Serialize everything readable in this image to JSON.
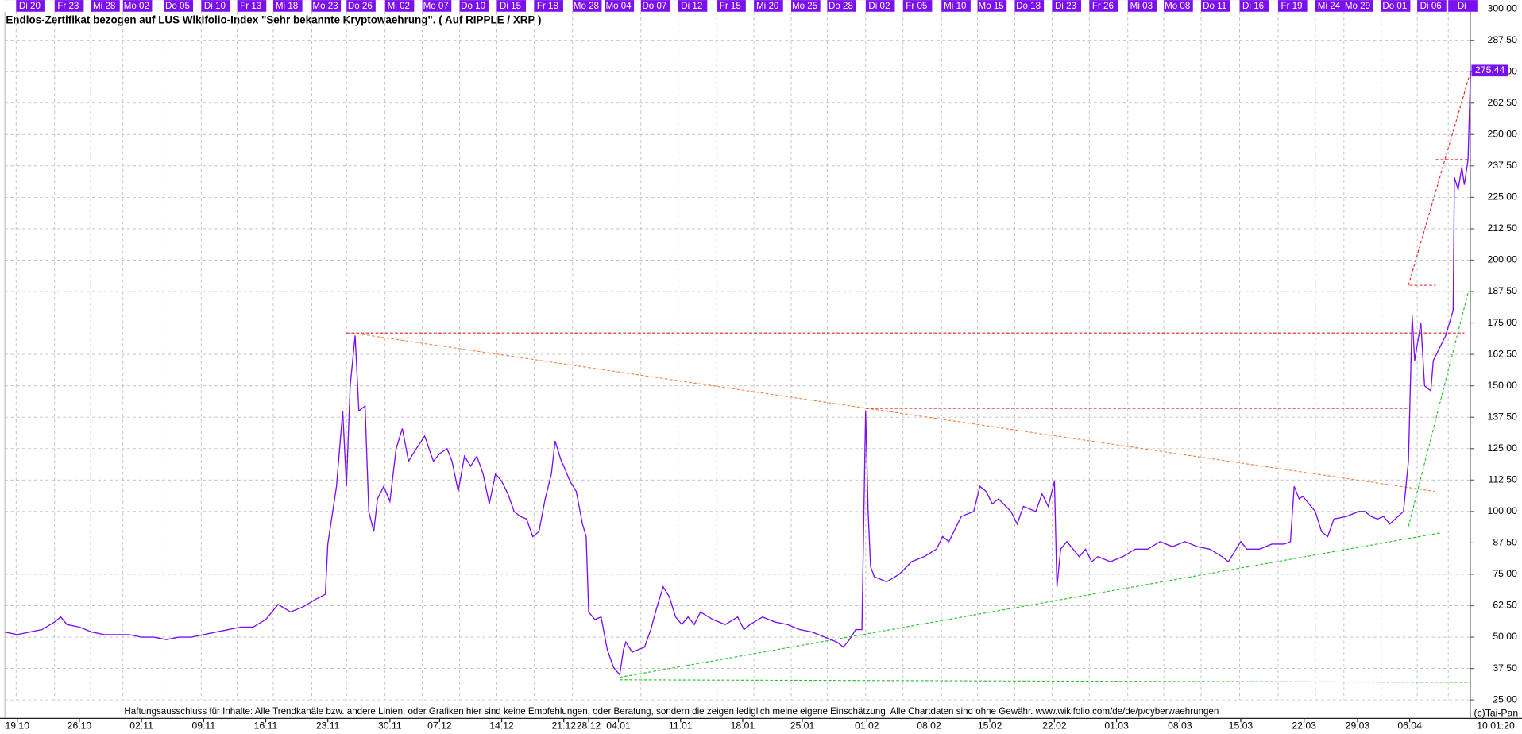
{
  "chart_data": {
    "type": "line",
    "title": "Endlos-Zertifikat bezogen auf LUS Wikifolio-Index \"Sehr bekannte Kryptowaehrung\". ( Auf RIPPLE / XRP )",
    "disclaimer": "Haftungsausschluss für Inhalte: Alle Trendkanäle bzw. andere Linien, oder Grafiken hier sind keine Empfehlungen, oder Beratung, sondern die zeigen lediglich meine eigene Einschätzung. Alle Chartdaten sind ohne Gewähr.  www.wikifolio.com/de/de/p/cyberwaehrungen",
    "copyright": "(c)Tai-Pan",
    "time_label": "10:01:20",
    "last_value": {
      "value": 275.44,
      "label": "275.44"
    },
    "color": "#7a10f0",
    "grid": true,
    "xlim": [
      -1,
      117
    ],
    "ylim": [
      25,
      300
    ],
    "yticks": [
      {
        "value": 25,
        "label": "25.00"
      },
      {
        "value": 37.5,
        "label": "37.50"
      },
      {
        "value": 50,
        "label": "50.00"
      },
      {
        "value": 62.5,
        "label": "62.50"
      },
      {
        "value": 75,
        "label": "75.00"
      },
      {
        "value": 87.5,
        "label": "87.50"
      },
      {
        "value": 100,
        "label": "100.00"
      },
      {
        "value": 112.5,
        "label": "112.50"
      },
      {
        "value": 125,
        "label": "125.00"
      },
      {
        "value": 137.5,
        "label": "137.50"
      },
      {
        "value": 150,
        "label": "150.00"
      },
      {
        "value": 162.5,
        "label": "162.50"
      },
      {
        "value": 175,
        "label": "175.00"
      },
      {
        "value": 187.5,
        "label": "187.50"
      },
      {
        "value": 200,
        "label": "200.00"
      },
      {
        "value": 212.5,
        "label": "212.50"
      },
      {
        "value": 225,
        "label": "225.00"
      },
      {
        "value": 237.5,
        "label": "237.50"
      },
      {
        "value": 250,
        "label": "250.00"
      },
      {
        "value": 262.5,
        "label": "262.50"
      },
      {
        "value": 275,
        "label": "275.00"
      },
      {
        "value": 287.5,
        "label": "287.50"
      },
      {
        "value": 300,
        "label": "300.00"
      }
    ],
    "xticks": [
      {
        "value": 0,
        "label": "19.10"
      },
      {
        "value": 5,
        "label": "26.10"
      },
      {
        "value": 10,
        "label": "02.11"
      },
      {
        "value": 15,
        "label": "09.11"
      },
      {
        "value": 20,
        "label": "16.11"
      },
      {
        "value": 25,
        "label": "23.11"
      },
      {
        "value": 30,
        "label": "30.11"
      },
      {
        "value": 34,
        "label": "07.12"
      },
      {
        "value": 39,
        "label": "14.12"
      },
      {
        "value": 44,
        "label": "21.12"
      },
      {
        "value": 46,
        "label": "28.12"
      },
      {
        "value": 48.4,
        "label": "04.01"
      },
      {
        "value": 53.4,
        "label": "11.01"
      },
      {
        "value": 58.4,
        "label": "18.01"
      },
      {
        "value": 63.2,
        "label": "25.01"
      },
      {
        "value": 68.4,
        "label": "01.02"
      },
      {
        "value": 73.4,
        "label": "08.02"
      },
      {
        "value": 78.3,
        "label": "15.02"
      },
      {
        "value": 83.5,
        "label": "22.02"
      },
      {
        "value": 88.5,
        "label": "01.03"
      },
      {
        "value": 93.6,
        "label": "08.03"
      },
      {
        "value": 98.5,
        "label": "15.03"
      },
      {
        "value": 103.6,
        "label": "22.03"
      },
      {
        "value": 107.9,
        "label": "29.03"
      },
      {
        "value": 112.1,
        "label": "06.04"
      }
    ],
    "x2ticks": [
      {
        "value": 1,
        "label": "Di 20"
      },
      {
        "value": 4.1,
        "label": "Fr 23"
      },
      {
        "value": 7,
        "label": "Mi 28"
      },
      {
        "value": 9.6,
        "label": "Mo 02"
      },
      {
        "value": 12.9,
        "label": "Do 05"
      },
      {
        "value": 15.9,
        "label": "Di 10"
      },
      {
        "value": 18.8,
        "label": "Fr 13"
      },
      {
        "value": 21.7,
        "label": "Mi 18"
      },
      {
        "value": 24.8,
        "label": "Mo 23"
      },
      {
        "value": 27.6,
        "label": "Do 26"
      },
      {
        "value": 30.7,
        "label": "Mi 02"
      },
      {
        "value": 33.7,
        "label": "Mo 07"
      },
      {
        "value": 36.7,
        "label": "Do 10"
      },
      {
        "value": 39.7,
        "label": "Di 15"
      },
      {
        "value": 42.7,
        "label": "Fr 18"
      },
      {
        "value": 45.8,
        "label": "Mo 28"
      },
      {
        "value": 48.4,
        "label": "Mo 04"
      },
      {
        "value": 51.3,
        "label": "Do 07"
      },
      {
        "value": 54.3,
        "label": "Di 12"
      },
      {
        "value": 57.4,
        "label": "Fr 15"
      },
      {
        "value": 60.4,
        "label": "Mi 20"
      },
      {
        "value": 63.4,
        "label": "Mo 25"
      },
      {
        "value": 66.3,
        "label": "Do 28"
      },
      {
        "value": 69.4,
        "label": "Di 02"
      },
      {
        "value": 72.4,
        "label": "Fr 05"
      },
      {
        "value": 75.5,
        "label": "Mi 10"
      },
      {
        "value": 78.4,
        "label": "Mo 15"
      },
      {
        "value": 81.4,
        "label": "Do 18"
      },
      {
        "value": 84.4,
        "label": "Di 23"
      },
      {
        "value": 87.4,
        "label": "Fr 26"
      },
      {
        "value": 90.5,
        "label": "Mi 03"
      },
      {
        "value": 93.4,
        "label": "Mo 08"
      },
      {
        "value": 96.4,
        "label": "Do 11"
      },
      {
        "value": 99.5,
        "label": "Di 16"
      },
      {
        "value": 102.6,
        "label": "Fr 19"
      },
      {
        "value": 105.6,
        "label": "Mi 24"
      },
      {
        "value": 107.9,
        "label": "Mo 29"
      },
      {
        "value": 110.9,
        "label": "Do 01"
      },
      {
        "value": 113.8,
        "label": "Di 06"
      },
      {
        "value": 116.3,
        "label": "Di"
      }
    ],
    "x": [
      -1,
      0,
      1,
      2,
      3,
      3.5,
      4,
      5,
      6,
      7,
      8,
      9,
      10,
      11,
      12,
      13,
      14,
      15,
      16,
      17,
      18,
      19,
      20,
      21,
      22,
      23,
      24,
      24.8,
      25,
      25.7,
      26.2,
      26.5,
      26.8,
      27.2,
      27.5,
      28,
      28.3,
      28.7,
      29,
      29.5,
      30,
      30.5,
      31,
      31.5,
      32,
      32.8,
      33.5,
      34,
      34.6,
      35,
      35.5,
      36,
      36.5,
      37,
      37.5,
      38,
      38.5,
      39,
      39.5,
      40,
      40.5,
      41,
      41.5,
      42,
      42.5,
      43,
      43.3,
      43.8,
      44,
      44.5,
      45,
      45.5,
      45.8,
      46,
      46.5,
      47,
      47.5,
      48,
      48.5,
      48.8,
      49,
      49.5,
      50,
      50.5,
      51,
      51.5,
      52,
      52.5,
      53,
      53.5,
      54,
      54.5,
      55,
      56,
      57,
      58,
      58.5,
      59,
      60,
      61,
      62,
      63,
      64,
      65,
      66,
      66.5,
      67,
      67.5,
      68,
      68.3,
      68.5,
      68.7,
      69,
      70,
      71,
      72,
      73,
      74,
      74.5,
      75,
      75.5,
      76,
      77,
      77.5,
      78,
      78.5,
      79,
      80,
      80.5,
      81,
      82,
      82.5,
      83,
      83.5,
      83.7,
      84,
      84.5,
      85,
      85.5,
      86,
      86.5,
      87,
      88,
      89,
      90,
      91,
      92,
      93,
      94,
      95,
      96,
      97,
      97.5,
      98,
      98.5,
      99,
      100,
      101,
      102,
      102.5,
      102.8,
      103.2,
      103.5,
      104,
      104.5,
      105,
      105.5,
      106,
      107,
      108,
      108.5,
      109,
      109.5,
      110,
      110.5,
      111.6,
      112,
      112.3,
      112.5,
      113,
      113.3,
      113.8,
      114,
      114.5,
      115,
      115.3,
      115.6,
      115.7,
      116,
      116.3,
      116.5,
      116.8,
      117
    ],
    "values": [
      52,
      51,
      52,
      53,
      56,
      58,
      55,
      54,
      52,
      51,
      51,
      51,
      50,
      50,
      49,
      50,
      50,
      51,
      52,
      53,
      54,
      54,
      57,
      63,
      60,
      62,
      65,
      67,
      87,
      110,
      140,
      110,
      150,
      170,
      140,
      142,
      100,
      92,
      105,
      110,
      104,
      125,
      133,
      120,
      124,
      130,
      120,
      123,
      125,
      120,
      108,
      122,
      118,
      122,
      115,
      103,
      115,
      112,
      107,
      100,
      98,
      97,
      90,
      92,
      105,
      115,
      128,
      120,
      118,
      112,
      108,
      95,
      90,
      60,
      57,
      58,
      45,
      38,
      35,
      45,
      48,
      44,
      45,
      46,
      53,
      62,
      70,
      66,
      58,
      55,
      58,
      55,
      60,
      57,
      55,
      58,
      53,
      55,
      58,
      56,
      55,
      53,
      52,
      50,
      48,
      46,
      49,
      53,
      53,
      140,
      100,
      78,
      74,
      72,
      75,
      80,
      82,
      85,
      90,
      88,
      93,
      98,
      100,
      110,
      108,
      103,
      105,
      100,
      95,
      102,
      100,
      107,
      102,
      112,
      70,
      85,
      88,
      85,
      82,
      85,
      80,
      82,
      80,
      82,
      85,
      85,
      88,
      86,
      88,
      86,
      85,
      82,
      80,
      84,
      88,
      85,
      85,
      87,
      87,
      88,
      110,
      105,
      106,
      103,
      100,
      92,
      90,
      97,
      98,
      100,
      100,
      98,
      97,
      98,
      95,
      100,
      120,
      178,
      160,
      175,
      150,
      148,
      160,
      165,
      170,
      175,
      180,
      233,
      228,
      237,
      230,
      240,
      275.44
    ],
    "trendlines": [
      {
        "color": "#f08040",
        "dashed": true,
        "x": [
          27,
          114.1
        ],
        "y": [
          171,
          108
        ]
      },
      {
        "color": "#e02020",
        "dashed": true,
        "x": [
          26.5,
          116.5
        ],
        "y": [
          171,
          171
        ]
      },
      {
        "color": "#e02020",
        "dashed": true,
        "x": [
          68.3,
          112
        ],
        "y": [
          141,
          141
        ]
      },
      {
        "color": "#e02020",
        "dashed": true,
        "x": [
          112.1,
          114.2
        ],
        "y": [
          190,
          190
        ]
      },
      {
        "color": "#e02020",
        "dashed": true,
        "x": [
          114.2,
          117
        ],
        "y": [
          240,
          240
        ]
      },
      {
        "color": "#e02020",
        "dashed": true,
        "x": [
          112,
          117
        ],
        "y": [
          190,
          275
        ]
      },
      {
        "color": "#20c020",
        "dashed": true,
        "x": [
          48.5,
          114.6
        ],
        "y": [
          34,
          91.5
        ]
      },
      {
        "color": "#20c020",
        "dashed": true,
        "x": [
          112,
          116.8
        ],
        "y": [
          94,
          187
        ]
      },
      {
        "color": "#20c020",
        "dashed": true,
        "x": [
          48.5,
          117
        ],
        "y": [
          33,
          32
        ]
      }
    ]
  }
}
